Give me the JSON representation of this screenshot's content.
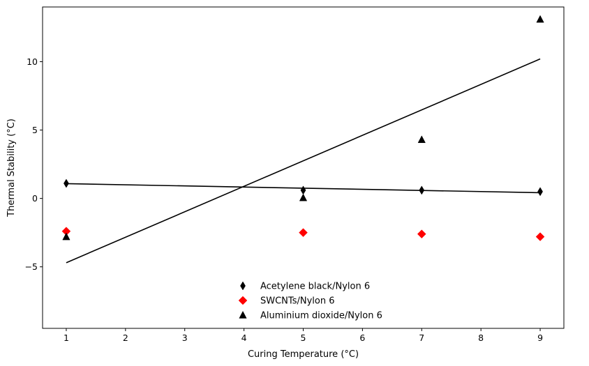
{
  "chart_data": {
    "type": "scatter",
    "title": "",
    "xlabel": "Curing Temperature (°C)",
    "ylabel": "Thermal Stability (°C)",
    "xlim": [
      0.6,
      9.4
    ],
    "ylim": [
      -9.5,
      14
    ],
    "xticks": [
      1,
      2,
      3,
      4,
      5,
      6,
      7,
      8,
      9
    ],
    "yticks": [
      -5,
      0,
      5,
      10
    ],
    "ytick_labels": [
      "−5",
      "0",
      "5",
      "10"
    ],
    "grid": false,
    "legend_position": "bottom-center",
    "series": [
      {
        "name": "Acetylene black/Nylon 6",
        "marker": "thin-diamond",
        "color": "#000000",
        "x": [
          1,
          5,
          7,
          9
        ],
        "y": [
          1.1,
          0.6,
          0.6,
          0.5
        ],
        "trend_line": [
          [
            1,
            1.08
          ],
          [
            9,
            0.42
          ]
        ]
      },
      {
        "name": "SWCNTs/Nylon 6",
        "marker": "diamond",
        "color": "#ff0000",
        "x": [
          1,
          5,
          7,
          9
        ],
        "y": [
          -2.4,
          -2.5,
          -2.6,
          -2.8
        ]
      },
      {
        "name": "Aluminium dioxide/Nylon 6",
        "marker": "triangle",
        "color": "#000000",
        "x": [
          1,
          5,
          7,
          9
        ],
        "y": [
          -2.8,
          0.05,
          4.3,
          13.1
        ],
        "trend_line": [
          [
            1,
            -4.7
          ],
          [
            9,
            10.2
          ]
        ]
      }
    ]
  }
}
